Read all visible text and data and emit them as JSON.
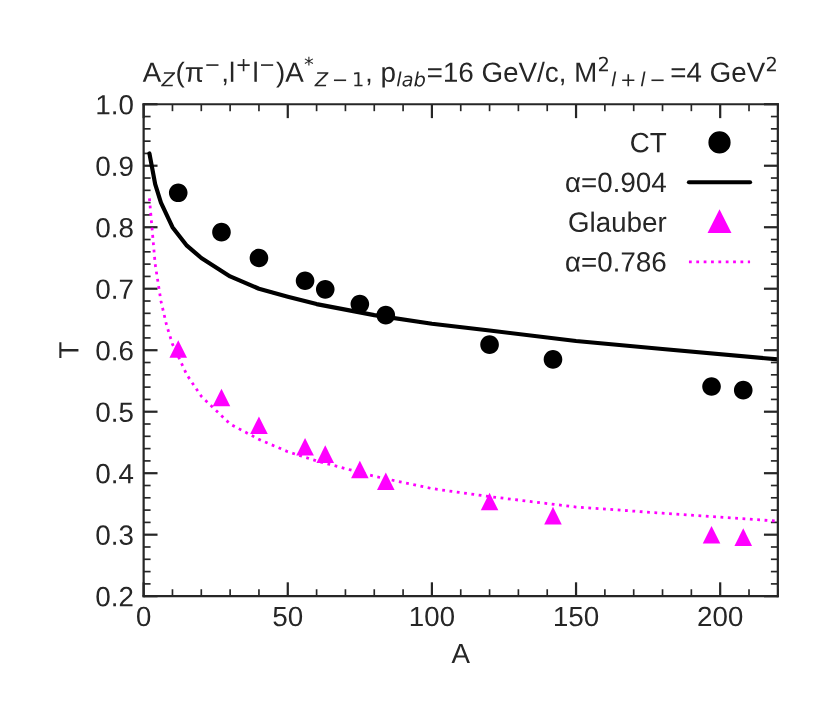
{
  "chart_data": {
    "type": "scatter",
    "title": "A$_{Z}$(π$^{−}$,l$^{+}$l$^{−}$)A$^{*}$$_{Z−1}$, p$_{lab}$=16 GeV/c, M$^{2}$$_{l+l−}$=4 GeV$^{2}$",
    "xlabel": "A",
    "ylabel": "T",
    "series": [
      {
        "name": "CT",
        "marker": "circle",
        "color": "#000000",
        "x": [
          12,
          27,
          40,
          56,
          63,
          75,
          84,
          120,
          142,
          197,
          208
        ],
        "values": [
          0.856,
          0.792,
          0.75,
          0.713,
          0.699,
          0.675,
          0.657,
          0.609,
          0.585,
          0.541,
          0.535
        ]
      },
      {
        "name": "α=0.904",
        "type": "line",
        "line_style": "solid",
        "color": "#000000",
        "x": [
          2,
          4,
          6,
          8,
          10,
          15,
          20,
          30,
          40,
          50,
          60,
          80,
          100,
          120,
          150,
          180,
          220
        ],
        "values": [
          0.92,
          0.87,
          0.84,
          0.82,
          0.8,
          0.77,
          0.75,
          0.72,
          0.7,
          0.687,
          0.675,
          0.657,
          0.643,
          0.632,
          0.615,
          0.602,
          0.585
        ]
      },
      {
        "name": "Glauber",
        "marker": "triangle",
        "color": "#ff00ff",
        "x": [
          12,
          27,
          40,
          56,
          63,
          75,
          84,
          120,
          142,
          197,
          208
        ],
        "values": [
          0.602,
          0.523,
          0.478,
          0.443,
          0.431,
          0.406,
          0.387,
          0.354,
          0.331,
          0.3,
          0.296
        ]
      },
      {
        "name": "α=0.786",
        "type": "line",
        "line_style": "dotted",
        "color": "#ff00ff",
        "x": [
          2,
          4,
          6,
          8,
          10,
          15,
          20,
          30,
          40,
          50,
          60,
          80,
          100,
          120,
          150,
          180,
          220
        ],
        "values": [
          0.847,
          0.74,
          0.68,
          0.64,
          0.61,
          0.56,
          0.525,
          0.48,
          0.455,
          0.435,
          0.42,
          0.395,
          0.375,
          0.362,
          0.345,
          0.335,
          0.322
        ]
      }
    ],
    "xlim": [
      0,
      220
    ],
    "xticks": [
      0,
      50,
      100,
      150,
      200
    ],
    "ylim": [
      0.2,
      1.0
    ],
    "yticks": [
      {
        "value": 0.2,
        "label": "0.2"
      },
      {
        "value": 0.3,
        "label": "0.3"
      },
      {
        "value": 0.4,
        "label": "0.4"
      },
      {
        "value": 0.5,
        "label": "0.5"
      },
      {
        "value": 0.6,
        "label": "0.6"
      },
      {
        "value": 0.7,
        "label": "0.7"
      },
      {
        "value": 0.8,
        "label": "0.8"
      },
      {
        "value": 0.9,
        "label": "0.9"
      },
      {
        "value": 1.0,
        "label": "1.0"
      }
    ],
    "legend": "top right",
    "grid": false
  }
}
